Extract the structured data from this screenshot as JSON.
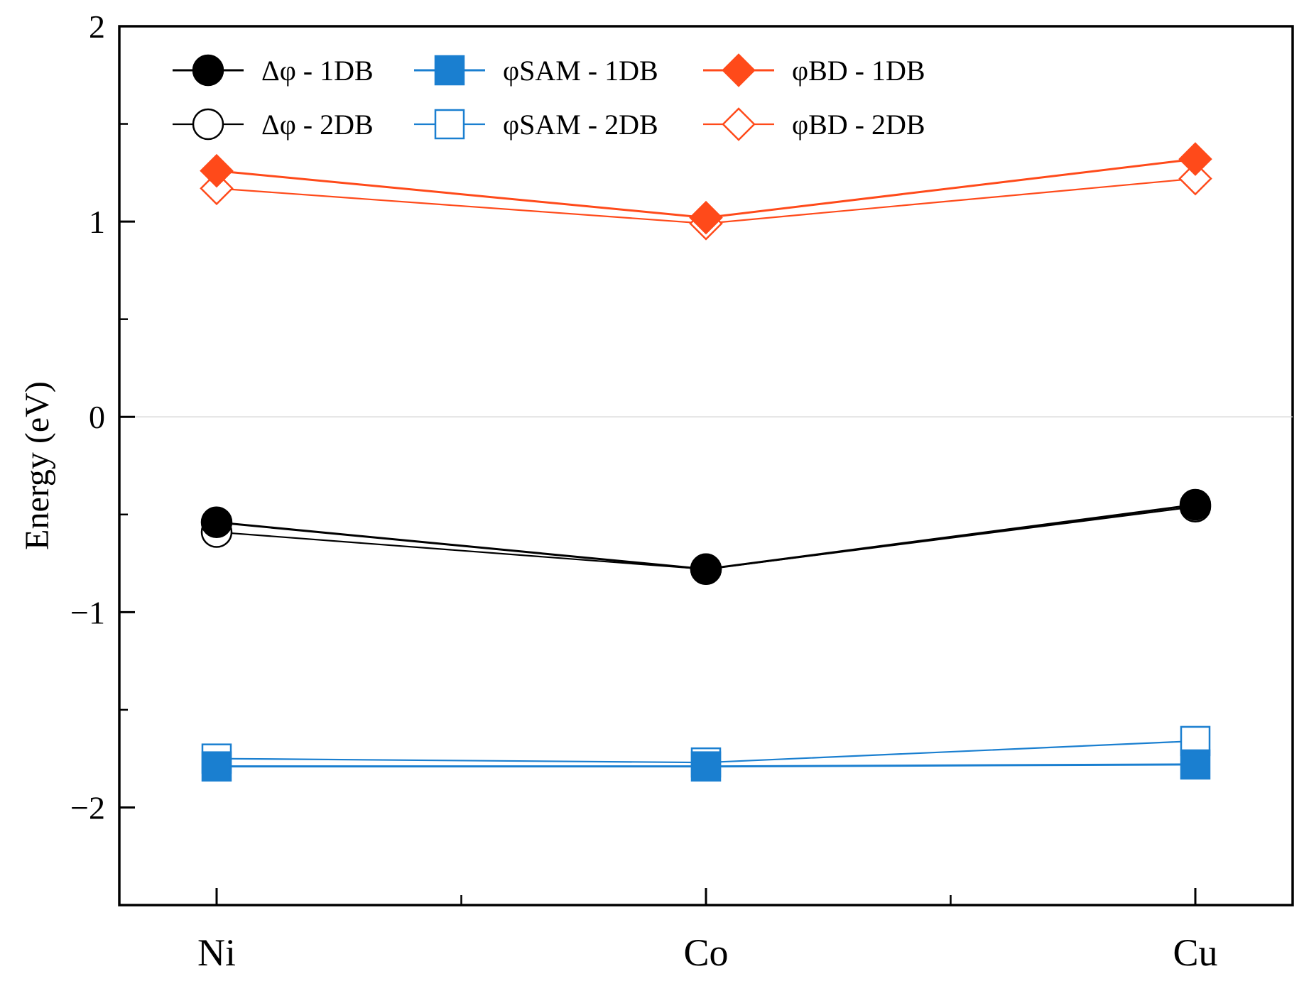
{
  "chart_data": {
    "type": "line",
    "title": "",
    "xlabel": "",
    "ylabel": "Energy (eV)",
    "categories": [
      "Ni",
      "Co",
      "Cu"
    ],
    "ylim": [
      -2.5,
      2
    ],
    "yticks": [
      -2,
      -1,
      0,
      1,
      2
    ],
    "ytick_labels": [
      "−2",
      "−1",
      "0",
      "1",
      "2"
    ],
    "zero_line": true,
    "legend_position": "top-left",
    "series": [
      {
        "name": "Δφ - 1DB",
        "values": [
          -0.54,
          -0.78,
          -0.45
        ],
        "color": "#000000",
        "marker": "circle",
        "filled": true
      },
      {
        "name": "φSAM - 1DB",
        "values": [
          -1.79,
          -1.79,
          -1.78
        ],
        "color": "#1a7fd0",
        "marker": "square",
        "filled": true
      },
      {
        "name": "φBD - 1DB",
        "values": [
          1.26,
          1.02,
          1.32
        ],
        "color": "#ff4a1a",
        "marker": "diamond",
        "filled": true
      },
      {
        "name": "Δφ - 2DB",
        "values": [
          -0.59,
          -0.78,
          -0.46
        ],
        "color": "#000000",
        "marker": "circle",
        "filled": false
      },
      {
        "name": "φSAM - 2DB",
        "values": [
          -1.75,
          -1.77,
          -1.66
        ],
        "color": "#1a7fd0",
        "marker": "square",
        "filled": false
      },
      {
        "name": "φBD - 2DB",
        "values": [
          1.17,
          0.99,
          1.22
        ],
        "color": "#ff4a1a",
        "marker": "diamond",
        "filled": false
      }
    ]
  }
}
